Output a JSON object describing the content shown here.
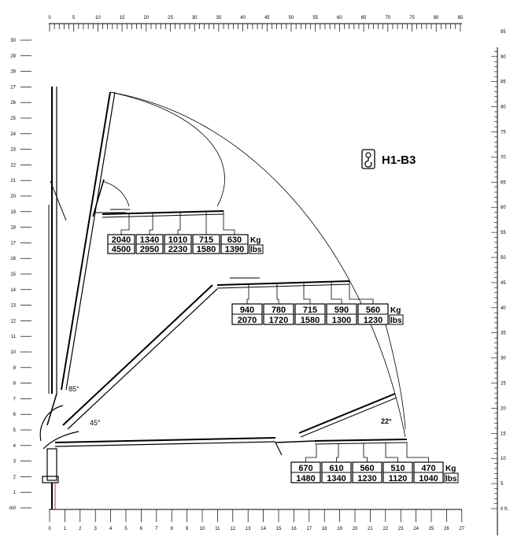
{
  "model": "H1-B3",
  "hook_icon": "crane-hook-icon",
  "angles": [
    "85°",
    "45°",
    "22°"
  ],
  "scales": {
    "top_ft": [
      "0",
      "5",
      "10",
      "15",
      "20",
      "25",
      "30",
      "35",
      "40",
      "45",
      "50",
      "55",
      "60",
      "65",
      "70",
      "75",
      "80",
      "85"
    ],
    "bottom_m": [
      "0",
      "1",
      "2",
      "3",
      "4",
      "5",
      "6",
      "7",
      "8",
      "9",
      "10",
      "11",
      "12",
      "13",
      "14",
      "15",
      "16",
      "17",
      "18",
      "19",
      "20",
      "21",
      "22",
      "23",
      "24",
      "25",
      "26",
      "27"
    ],
    "left_m": [
      "m0",
      "1",
      "2",
      "3",
      "4",
      "5",
      "6",
      "7",
      "8",
      "9",
      "10",
      "11",
      "12",
      "13",
      "14",
      "15",
      "16",
      "17",
      "18",
      "19",
      "20",
      "21",
      "22",
      "23",
      "24",
      "25",
      "26",
      "27",
      "28",
      "29",
      "30"
    ],
    "right_ft": [
      "0 ft.",
      "5",
      "10",
      "15",
      "20",
      "25",
      "30",
      "35",
      "40",
      "45",
      "50",
      "55",
      "60",
      "65",
      "70",
      "75",
      "80",
      "85",
      "90",
      "95"
    ]
  },
  "load_tables": [
    {
      "kg": [
        "2040",
        "1340",
        "1010",
        "715",
        "630"
      ],
      "lbs": [
        "4500",
        "2950",
        "2230",
        "1580",
        "1390"
      ],
      "kg_label": "Kg",
      "lbs_label": "lbs"
    },
    {
      "kg": [
        "940",
        "780",
        "715",
        "590",
        "560"
      ],
      "lbs": [
        "2070",
        "1720",
        "1580",
        "1300",
        "1230"
      ],
      "kg_label": "Kg",
      "lbs_label": "lbs"
    },
    {
      "kg": [
        "670",
        "610",
        "560",
        "510",
        "470"
      ],
      "lbs": [
        "1480",
        "1340",
        "1230",
        "1120",
        "1040"
      ],
      "kg_label": "Kg",
      "lbs_label": "lbs"
    }
  ]
}
